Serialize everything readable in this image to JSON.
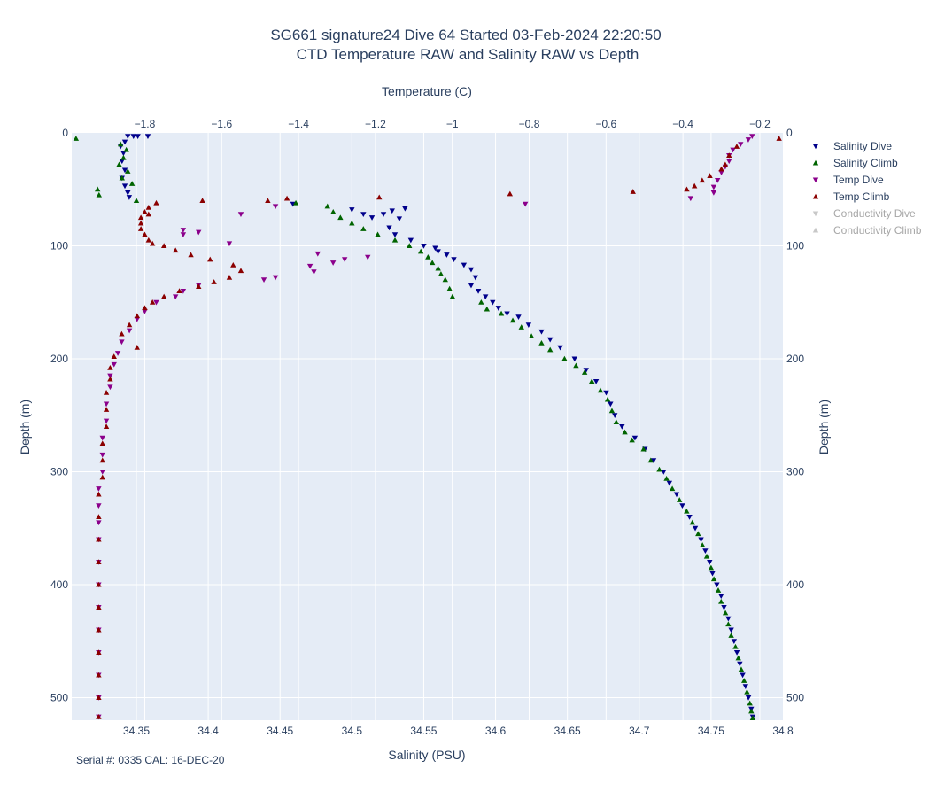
{
  "chart_data": {
    "type": "scatter",
    "title_line1": "SG661 signature24 Dive 64 Started 03-Feb-2024 22:20:50",
    "title_line2": "CTD Temperature RAW and Salinity RAW vs Depth",
    "xlabel": "Salinity (PSU)",
    "x2label": "Temperature (C)",
    "ylabel": "Depth (m)",
    "y2label": "Depth (m)",
    "xlim": [
      34.305,
      34.8
    ],
    "x2lim": [
      -1.99,
      -0.14
    ],
    "ylim": [
      520,
      0
    ],
    "x_ticks": [
      34.35,
      34.4,
      34.45,
      34.5,
      34.55,
      34.6,
      34.65,
      34.7,
      34.75,
      34.8
    ],
    "x_tick_labels": [
      "34.35",
      "34.4",
      "34.45",
      "34.5",
      "34.55",
      "34.6",
      "34.65",
      "34.7",
      "34.75",
      "34.8"
    ],
    "x2_ticks": [
      -1.8,
      -1.6,
      -1.4,
      -1.2,
      -1,
      -0.8,
      -0.6,
      -0.4,
      -0.2
    ],
    "x2_tick_labels": [
      "−1.8",
      "−1.6",
      "−1.4",
      "−1.2",
      "−1",
      "−0.8",
      "−0.6",
      "−0.4",
      "−0.2"
    ],
    "y_ticks": [
      0,
      100,
      200,
      300,
      400,
      500
    ],
    "y_tick_labels": [
      "0",
      "100",
      "200",
      "300",
      "400",
      "500"
    ],
    "grid": true,
    "legend_position": "right",
    "footnote": "Serial #: 0335  CAL: 16-DEC-20",
    "series": [
      {
        "name": "Salinity Dive",
        "axis": "salinity",
        "marker": "triangle-down",
        "color": "#00008b",
        "visible": true,
        "points": [
          [
            34.344,
            3
          ],
          [
            34.348,
            3
          ],
          [
            34.351,
            3
          ],
          [
            34.358,
            3
          ],
          [
            34.342,
            8
          ],
          [
            34.339,
            12
          ],
          [
            34.341,
            18
          ],
          [
            34.34,
            25
          ],
          [
            34.342,
            33
          ],
          [
            34.34,
            40
          ],
          [
            34.342,
            47
          ],
          [
            34.344,
            53
          ],
          [
            34.345,
            57
          ],
          [
            34.459,
            63
          ],
          [
            34.5,
            68
          ],
          [
            34.508,
            72
          ],
          [
            34.514,
            75
          ],
          [
            34.522,
            72
          ],
          [
            34.528,
            69
          ],
          [
            34.537,
            67
          ],
          [
            34.533,
            76
          ],
          [
            34.526,
            84
          ],
          [
            34.53,
            90
          ],
          [
            34.541,
            95
          ],
          [
            34.55,
            100
          ],
          [
            34.558,
            102
          ],
          [
            34.56,
            105
          ],
          [
            34.566,
            108
          ],
          [
            34.571,
            112
          ],
          [
            34.578,
            117
          ],
          [
            34.583,
            121
          ],
          [
            34.586,
            128
          ],
          [
            34.583,
            135
          ],
          [
            34.588,
            140
          ],
          [
            34.593,
            145
          ],
          [
            34.598,
            150
          ],
          [
            34.602,
            155
          ],
          [
            34.608,
            160
          ],
          [
            34.616,
            163
          ],
          [
            34.623,
            170
          ],
          [
            34.632,
            176
          ],
          [
            34.638,
            183
          ],
          [
            34.645,
            190
          ],
          [
            34.655,
            200
          ],
          [
            34.663,
            210
          ],
          [
            34.67,
            220
          ],
          [
            34.677,
            230
          ],
          [
            34.68,
            240
          ],
          [
            34.683,
            250
          ],
          [
            34.688,
            260
          ],
          [
            34.697,
            270
          ],
          [
            34.704,
            280
          ],
          [
            34.71,
            290
          ],
          [
            34.717,
            300
          ],
          [
            34.721,
            310
          ],
          [
            34.726,
            320
          ],
          [
            34.73,
            330
          ],
          [
            34.735,
            340
          ],
          [
            34.739,
            350
          ],
          [
            34.743,
            360
          ],
          [
            34.746,
            370
          ],
          [
            34.749,
            380
          ],
          [
            34.751,
            390
          ],
          [
            34.754,
            400
          ],
          [
            34.757,
            410
          ],
          [
            34.759,
            420
          ],
          [
            34.762,
            430
          ],
          [
            34.764,
            440
          ],
          [
            34.766,
            450
          ],
          [
            34.768,
            460
          ],
          [
            34.77,
            470
          ],
          [
            34.772,
            480
          ],
          [
            34.774,
            490
          ],
          [
            34.776,
            500
          ],
          [
            34.778,
            510
          ],
          [
            34.779,
            517
          ]
        ]
      },
      {
        "name": "Salinity Climb",
        "axis": "salinity",
        "marker": "triangle-up",
        "color": "#006400",
        "visible": true,
        "points": [
          [
            34.308,
            5
          ],
          [
            34.339,
            10
          ],
          [
            34.343,
            15
          ],
          [
            34.341,
            22
          ],
          [
            34.338,
            28
          ],
          [
            34.344,
            34
          ],
          [
            34.34,
            40
          ],
          [
            34.347,
            45
          ],
          [
            34.323,
            50
          ],
          [
            34.324,
            55
          ],
          [
            34.35,
            60
          ],
          [
            34.461,
            62
          ],
          [
            34.483,
            65
          ],
          [
            34.487,
            70
          ],
          [
            34.492,
            75
          ],
          [
            34.5,
            80
          ],
          [
            34.508,
            85
          ],
          [
            34.518,
            90
          ],
          [
            34.53,
            95
          ],
          [
            34.54,
            100
          ],
          [
            34.548,
            105
          ],
          [
            34.553,
            110
          ],
          [
            34.556,
            115
          ],
          [
            34.56,
            120
          ],
          [
            34.562,
            125
          ],
          [
            34.565,
            130
          ],
          [
            34.568,
            138
          ],
          [
            34.57,
            145
          ],
          [
            34.59,
            150
          ],
          [
            34.594,
            156
          ],
          [
            34.604,
            160
          ],
          [
            34.612,
            166
          ],
          [
            34.618,
            172
          ],
          [
            34.625,
            180
          ],
          [
            34.632,
            186
          ],
          [
            34.638,
            192
          ],
          [
            34.648,
            200
          ],
          [
            34.656,
            206
          ],
          [
            34.662,
            212
          ],
          [
            34.667,
            220
          ],
          [
            34.673,
            228
          ],
          [
            34.678,
            236
          ],
          [
            34.681,
            246
          ],
          [
            34.684,
            256
          ],
          [
            34.69,
            265
          ],
          [
            34.695,
            272
          ],
          [
            34.703,
            280
          ],
          [
            34.708,
            290
          ],
          [
            34.714,
            298
          ],
          [
            34.719,
            306
          ],
          [
            34.723,
            315
          ],
          [
            34.728,
            325
          ],
          [
            34.733,
            335
          ],
          [
            34.737,
            345
          ],
          [
            34.741,
            355
          ],
          [
            34.744,
            365
          ],
          [
            34.747,
            375
          ],
          [
            34.75,
            385
          ],
          [
            34.752,
            395
          ],
          [
            34.755,
            405
          ],
          [
            34.757,
            415
          ],
          [
            34.76,
            425
          ],
          [
            34.762,
            435
          ],
          [
            34.764,
            445
          ],
          [
            34.767,
            455
          ],
          [
            34.769,
            465
          ],
          [
            34.771,
            475
          ],
          [
            34.773,
            485
          ],
          [
            34.775,
            495
          ],
          [
            34.777,
            505
          ],
          [
            34.778,
            512
          ],
          [
            34.779,
            518
          ]
        ]
      },
      {
        "name": "Temp Dive",
        "axis": "temperature",
        "marker": "triangle-down",
        "color": "#8b008b",
        "visible": true,
        "points": [
          [
            -0.22,
            3
          ],
          [
            -0.23,
            6
          ],
          [
            -0.25,
            10
          ],
          [
            -0.27,
            15
          ],
          [
            -0.28,
            20
          ],
          [
            -0.28,
            25
          ],
          [
            -0.29,
            30
          ],
          [
            -0.3,
            35
          ],
          [
            -0.31,
            42
          ],
          [
            -0.32,
            48
          ],
          [
            -0.32,
            53
          ],
          [
            -0.38,
            58
          ],
          [
            -0.81,
            63
          ],
          [
            -1.46,
            65
          ],
          [
            -1.55,
            72
          ],
          [
            -1.7,
            86
          ],
          [
            -1.66,
            88
          ],
          [
            -1.7,
            90
          ],
          [
            -1.58,
            98
          ],
          [
            -1.35,
            107
          ],
          [
            -1.22,
            110
          ],
          [
            -1.28,
            112
          ],
          [
            -1.31,
            115
          ],
          [
            -1.37,
            118
          ],
          [
            -1.36,
            123
          ],
          [
            -1.49,
            130
          ],
          [
            -1.46,
            128
          ],
          [
            -1.66,
            135
          ],
          [
            -1.7,
            140
          ],
          [
            -1.72,
            145
          ],
          [
            -1.77,
            150
          ],
          [
            -1.8,
            158
          ],
          [
            -1.82,
            165
          ],
          [
            -1.84,
            175
          ],
          [
            -1.86,
            185
          ],
          [
            -1.87,
            195
          ],
          [
            -1.88,
            205
          ],
          [
            -1.89,
            215
          ],
          [
            -1.89,
            225
          ],
          [
            -1.9,
            240
          ],
          [
            -1.9,
            255
          ],
          [
            -1.91,
            270
          ],
          [
            -1.91,
            285
          ],
          [
            -1.91,
            300
          ],
          [
            -1.92,
            315
          ],
          [
            -1.92,
            330
          ],
          [
            -1.92,
            345
          ],
          [
            -1.92,
            360
          ],
          [
            -1.92,
            380
          ],
          [
            -1.92,
            400
          ],
          [
            -1.92,
            420
          ],
          [
            -1.92,
            440
          ],
          [
            -1.92,
            460
          ],
          [
            -1.92,
            480
          ],
          [
            -1.92,
            500
          ],
          [
            -1.92,
            517
          ]
        ]
      },
      {
        "name": "Temp Climb",
        "axis": "temperature",
        "marker": "triangle-up",
        "color": "#8b0000",
        "visible": true,
        "points": [
          [
            -0.15,
            5
          ],
          [
            -0.26,
            12
          ],
          [
            -0.28,
            20
          ],
          [
            -0.29,
            28
          ],
          [
            -0.3,
            32
          ],
          [
            -0.33,
            38
          ],
          [
            -0.35,
            42
          ],
          [
            -0.37,
            47
          ],
          [
            -0.39,
            50
          ],
          [
            -0.53,
            52
          ],
          [
            -0.85,
            54
          ],
          [
            -1.19,
            57
          ],
          [
            -1.43,
            58
          ],
          [
            -1.48,
            60
          ],
          [
            -1.65,
            60
          ],
          [
            -1.77,
            62
          ],
          [
            -1.79,
            66
          ],
          [
            -1.8,
            70
          ],
          [
            -1.79,
            72
          ],
          [
            -1.81,
            75
          ],
          [
            -1.81,
            80
          ],
          [
            -1.81,
            85
          ],
          [
            -1.8,
            90
          ],
          [
            -1.79,
            95
          ],
          [
            -1.78,
            98
          ],
          [
            -1.75,
            100
          ],
          [
            -1.72,
            104
          ],
          [
            -1.68,
            108
          ],
          [
            -1.63,
            112
          ],
          [
            -1.57,
            117
          ],
          [
            -1.55,
            122
          ],
          [
            -1.58,
            128
          ],
          [
            -1.62,
            132
          ],
          [
            -1.66,
            136
          ],
          [
            -1.71,
            140
          ],
          [
            -1.75,
            145
          ],
          [
            -1.78,
            150
          ],
          [
            -1.8,
            155
          ],
          [
            -1.82,
            162
          ],
          [
            -1.84,
            170
          ],
          [
            -1.86,
            178
          ],
          [
            -1.82,
            190
          ],
          [
            -1.88,
            198
          ],
          [
            -1.89,
            208
          ],
          [
            -1.89,
            218
          ],
          [
            -1.9,
            230
          ],
          [
            -1.9,
            245
          ],
          [
            -1.9,
            260
          ],
          [
            -1.91,
            275
          ],
          [
            -1.91,
            290
          ],
          [
            -1.91,
            305
          ],
          [
            -1.92,
            320
          ],
          [
            -1.92,
            340
          ],
          [
            -1.92,
            360
          ],
          [
            -1.92,
            380
          ],
          [
            -1.92,
            400
          ],
          [
            -1.92,
            420
          ],
          [
            -1.92,
            440
          ],
          [
            -1.92,
            460
          ],
          [
            -1.92,
            480
          ],
          [
            -1.92,
            500
          ],
          [
            -1.92,
            517
          ]
        ]
      },
      {
        "name": "Conductivity Dive",
        "axis": "none",
        "marker": "triangle-down",
        "color": "#c8c8c8",
        "visible": false,
        "points": []
      },
      {
        "name": "Conductivity Climb",
        "axis": "none",
        "marker": "triangle-up",
        "color": "#c8c8c8",
        "visible": false,
        "points": []
      }
    ]
  }
}
